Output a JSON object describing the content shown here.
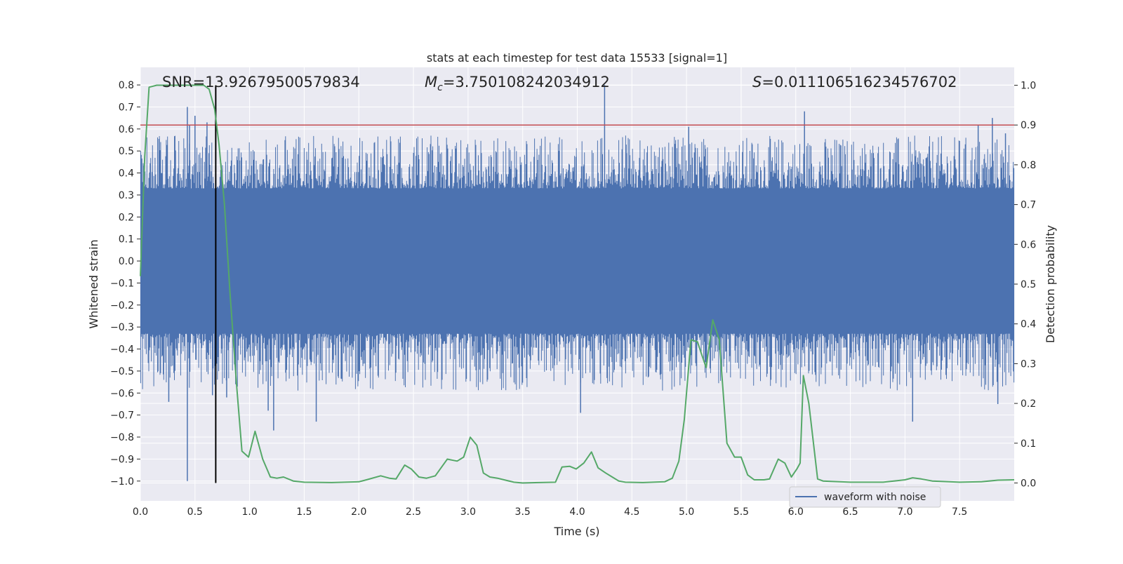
{
  "chart_data": {
    "type": "line",
    "title": "stats at each timestep for test data 15533 [signal=1]",
    "xlabel": "Time (s)",
    "ylabel_left": "Whitened strain",
    "ylabel_right": "Detection probability",
    "xlim": [
      0.0,
      8.0
    ],
    "ylim_left": [
      -1.09,
      0.88
    ],
    "ylim_right": [
      -0.045,
      1.045
    ],
    "x_ticks": [
      "0.0",
      "0.5",
      "1.0",
      "1.5",
      "2.0",
      "2.5",
      "3.0",
      "3.5",
      "4.0",
      "4.5",
      "5.0",
      "5.5",
      "6.0",
      "6.5",
      "7.0",
      "7.5"
    ],
    "left_ticks": [
      "0.8",
      "0.7",
      "0.6",
      "0.5",
      "0.4",
      "0.3",
      "0.2",
      "0.1",
      "0.0",
      "−0.1",
      "−0.2",
      "−0.3",
      "−0.4",
      "−0.5",
      "−0.6",
      "−0.7",
      "−0.8",
      "−0.9",
      "−1.0"
    ],
    "right_ticks": [
      "1.0",
      "0.9",
      "0.8",
      "0.7",
      "0.6",
      "0.5",
      "0.4",
      "0.3",
      "0.2",
      "0.1",
      "0.0"
    ],
    "annotations": {
      "snr": "SNR=13.92679500579834",
      "mc_symbol": "M",
      "mc_sub": "c",
      "mc_value": "=3.750108242034912",
      "s_symbol": "S",
      "s_value": "=0.011106516234576702"
    },
    "legend": {
      "label": "waveform with noise",
      "position": "lower-right"
    },
    "threshold": 0.9,
    "marker_time": 0.69,
    "waveform": {
      "name": "waveform with noise",
      "color": "#4c72b0",
      "core_envelope": [
        -0.33,
        0.33
      ],
      "spikes": [
        {
          "t": 0.43,
          "v": 0.7
        },
        {
          "t": 0.43,
          "v": -1.0
        },
        {
          "t": 0.5,
          "v": 0.66
        },
        {
          "t": 0.45,
          "v": 0.62
        },
        {
          "t": 0.61,
          "v": 0.63
        },
        {
          "t": 0.66,
          "v": -0.61
        },
        {
          "t": 0.26,
          "v": -0.64
        },
        {
          "t": 0.79,
          "v": -0.62
        },
        {
          "t": 1.22,
          "v": -0.77
        },
        {
          "t": 1.17,
          "v": -0.68
        },
        {
          "t": 1.61,
          "v": -0.73
        },
        {
          "t": 4.25,
          "v": 0.8
        },
        {
          "t": 4.03,
          "v": -0.69
        },
        {
          "t": 4.45,
          "v": 0.49
        },
        {
          "t": 5.02,
          "v": 0.61
        },
        {
          "t": 6.08,
          "v": 0.68
        },
        {
          "t": 7.07,
          "v": -0.73
        },
        {
          "t": 7.67,
          "v": 0.62
        },
        {
          "t": 7.8,
          "v": 0.65
        },
        {
          "t": 7.85,
          "v": -0.65
        },
        {
          "t": 7.92,
          "v": 0.58
        }
      ]
    },
    "probability": {
      "name": "detection probability",
      "color": "#55a868",
      "x": [
        0.0,
        0.04,
        0.08,
        0.15,
        0.3,
        0.45,
        0.58,
        0.63,
        0.68,
        0.72,
        0.77,
        0.82,
        0.88,
        0.93,
        0.99,
        1.05,
        1.12,
        1.19,
        1.25,
        1.31,
        1.4,
        1.5,
        1.75,
        2.0,
        2.07,
        2.2,
        2.28,
        2.34,
        2.42,
        2.48,
        2.55,
        2.62,
        2.7,
        2.81,
        2.9,
        2.96,
        3.02,
        3.08,
        3.14,
        3.2,
        3.27,
        3.33,
        3.42,
        3.5,
        3.65,
        3.8,
        3.86,
        3.93,
        3.99,
        4.06,
        4.13,
        4.19,
        4.26,
        4.32,
        4.38,
        4.44,
        4.6,
        4.8,
        4.87,
        4.93,
        4.98,
        5.04,
        5.1,
        5.13,
        5.18,
        5.24,
        5.3,
        5.37,
        5.44,
        5.5,
        5.56,
        5.62,
        5.71,
        5.76,
        5.84,
        5.9,
        5.96,
        6.01,
        6.04,
        6.07,
        6.12,
        6.2,
        6.25,
        6.32,
        6.5,
        6.8,
        7.0,
        7.07,
        7.15,
        7.25,
        7.5,
        7.7,
        7.85,
        8.0
      ],
      "y": [
        0.52,
        0.82,
        0.995,
        1.0,
        1.0,
        1.0,
        1.0,
        0.99,
        0.94,
        0.85,
        0.7,
        0.48,
        0.25,
        0.08,
        0.065,
        0.13,
        0.06,
        0.015,
        0.012,
        0.015,
        0.005,
        0.002,
        0.001,
        0.003,
        0.008,
        0.018,
        0.012,
        0.01,
        0.045,
        0.035,
        0.015,
        0.012,
        0.018,
        0.06,
        0.055,
        0.065,
        0.115,
        0.095,
        0.025,
        0.015,
        0.012,
        0.008,
        0.002,
        0.0,
        0.001,
        0.002,
        0.04,
        0.042,
        0.035,
        0.05,
        0.078,
        0.038,
        0.025,
        0.015,
        0.005,
        0.002,
        0.001,
        0.003,
        0.012,
        0.055,
        0.16,
        0.36,
        0.355,
        0.33,
        0.29,
        0.41,
        0.36,
        0.1,
        0.065,
        0.065,
        0.02,
        0.008,
        0.008,
        0.01,
        0.06,
        0.05,
        0.015,
        0.035,
        0.05,
        0.27,
        0.2,
        0.01,
        0.005,
        0.004,
        0.002,
        0.002,
        0.008,
        0.013,
        0.01,
        0.005,
        0.002,
        0.003,
        0.007,
        0.008
      ]
    },
    "colors": {
      "background": "#eaeaf2",
      "grid": "#ffffff",
      "threshold_line": "#c44e52",
      "marker_line": "#000000"
    }
  }
}
